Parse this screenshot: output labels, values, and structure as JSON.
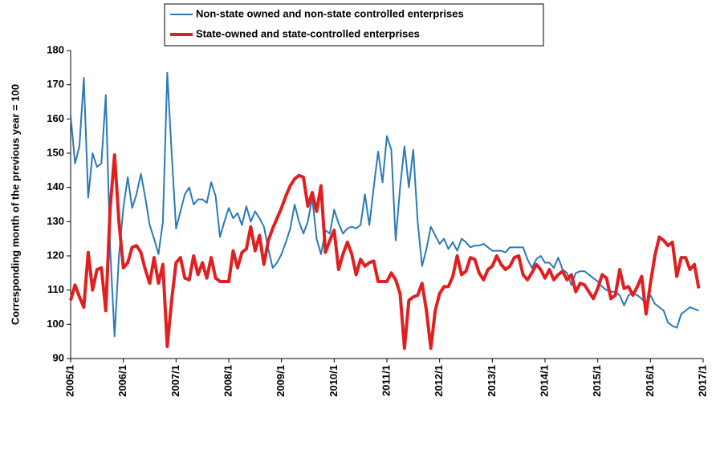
{
  "chart_data": {
    "type": "line",
    "y_label": "Corresponding month of the previous year = 100",
    "categories": [
      "2005/1",
      null,
      null,
      null,
      null,
      null,
      null,
      null,
      null,
      null,
      null,
      null,
      "2006/1",
      null,
      null,
      null,
      null,
      null,
      null,
      null,
      null,
      null,
      null,
      null,
      "2007/1",
      null,
      null,
      null,
      null,
      null,
      null,
      null,
      null,
      null,
      null,
      null,
      "2008/1",
      null,
      null,
      null,
      null,
      null,
      null,
      null,
      null,
      null,
      null,
      null,
      "2009/1",
      null,
      null,
      null,
      null,
      null,
      null,
      null,
      null,
      null,
      null,
      null,
      "2010/1",
      null,
      null,
      null,
      null,
      null,
      null,
      null,
      null,
      null,
      null,
      null,
      "2011/1",
      null,
      null,
      null,
      null,
      null,
      null,
      null,
      null,
      null,
      null,
      null,
      "2012/1",
      null,
      null,
      null,
      null,
      null,
      null,
      null,
      null,
      null,
      null,
      null,
      "2013/1",
      null,
      null,
      null,
      null,
      null,
      null,
      null,
      null,
      null,
      null,
      null,
      "2014/1",
      null,
      null,
      null,
      null,
      null,
      null,
      null,
      null,
      null,
      null,
      null,
      "2015/1",
      null,
      null,
      null,
      null,
      null,
      null,
      null,
      null,
      null,
      null,
      null,
      "2016/1",
      null,
      null,
      null,
      null,
      null,
      null,
      null,
      null,
      null,
      null,
      null,
      "2017/1"
    ],
    "series": [
      {
        "name": "Non-state owned and non-state controlled enterprises",
        "color": "#2a7ab8",
        "width": 2,
        "values": [
          161,
          147,
          152,
          172,
          137,
          150,
          146,
          147,
          167,
          122,
          96.5,
          120,
          134,
          143,
          134,
          138,
          144,
          137,
          129,
          125,
          120.5,
          130,
          173.5,
          150,
          128,
          133,
          138,
          140,
          135,
          136.5,
          136.5,
          135.5,
          141.5,
          137.5,
          125.5,
          130,
          134,
          131,
          132.5,
          129,
          134.5,
          130,
          133,
          131,
          128.5,
          122,
          116.5,
          118,
          120.5,
          124,
          128,
          135,
          130,
          126.5,
          130,
          137,
          125,
          120.5,
          127.5,
          126.5,
          133.5,
          129.5,
          126.5,
          128,
          128.5,
          128,
          129,
          138,
          129,
          140,
          150.5,
          141.5,
          155,
          151,
          124.5,
          140,
          152,
          140,
          151,
          130,
          117,
          122,
          128.5,
          126,
          123.5,
          125,
          122,
          124,
          121.5,
          125,
          124,
          122.5,
          123,
          123,
          123.5,
          122.5,
          121.5,
          121.5,
          121.5,
          121,
          122.5,
          122.5,
          122.5,
          122.5,
          119,
          116.5,
          119,
          120,
          118,
          118,
          116.5,
          119.5,
          116,
          115,
          111.5,
          115,
          115.5,
          115.5,
          114.5,
          113.5,
          112.5,
          111,
          110,
          109.5,
          109.5,
          108.5,
          105.5,
          108.5,
          109,
          108.5,
          107.5,
          106,
          108.5,
          106,
          105,
          104,
          100.5,
          99.5,
          99,
          103,
          104,
          105,
          104.5,
          104,
          null
        ]
      },
      {
        "name": "State-owned and state-controlled enterprises",
        "color": "#e02020",
        "width": 4,
        "values": [
          107,
          111.5,
          108,
          105,
          121,
          110,
          116,
          116.5,
          104,
          134,
          149.5,
          130,
          116.5,
          118,
          122.5,
          123,
          121,
          116,
          112,
          119.5,
          112,
          117.5,
          93.5,
          107,
          118,
          119.5,
          113.5,
          113,
          120,
          114.5,
          118,
          113.5,
          119.5,
          113.5,
          112.5,
          112.5,
          112.5,
          121.5,
          116.5,
          121,
          122,
          128.5,
          121.5,
          126,
          117.5,
          124.5,
          128,
          131,
          134,
          137.5,
          140.5,
          142.5,
          143.5,
          143,
          134.5,
          138.5,
          133,
          140.5,
          121,
          124.5,
          127.5,
          116,
          120.5,
          124,
          120.5,
          114.5,
          119,
          117,
          118,
          118.5,
          112.5,
          112.5,
          112.5,
          115,
          113,
          109,
          93,
          107,
          108,
          108.5,
          112,
          104,
          93,
          104,
          109,
          111,
          111,
          114,
          120,
          114.5,
          115.5,
          119.5,
          119,
          115,
          113,
          116,
          117,
          120,
          117.5,
          116,
          117,
          119.5,
          120,
          114.5,
          113,
          115,
          117.5,
          116,
          113.5,
          116,
          113,
          114.5,
          115.5,
          113,
          114.5,
          109.5,
          112,
          111.5,
          109.5,
          107.5,
          110.5,
          114.5,
          113.5,
          107.5,
          108.5,
          116,
          110.5,
          111,
          108.5,
          111,
          114,
          103,
          112,
          120,
          125.5,
          124.5,
          123,
          124,
          114,
          119.5,
          119.5,
          116,
          117.5,
          110.5,
          null
        ]
      }
    ],
    "ylim": [
      90,
      180
    ],
    "yticks": [
      90,
      100,
      110,
      120,
      130,
      140,
      150,
      160,
      170,
      180
    ],
    "legend": "top"
  }
}
